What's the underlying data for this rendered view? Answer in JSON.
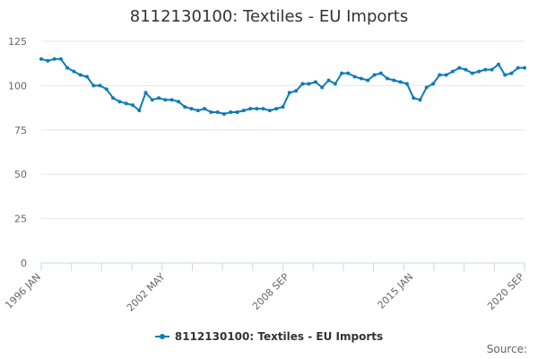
{
  "chart_data": {
    "type": "line",
    "title": "8112130100: Textiles - EU Imports",
    "xlabel": "",
    "ylabel": "",
    "ylim": [
      0,
      125
    ],
    "yticks": [
      0,
      25,
      50,
      75,
      100,
      125
    ],
    "x_start": "1996 JAN",
    "x_end": "2020 SEP",
    "xtick_labels": [
      "1996 JAN",
      "2002 MAY",
      "2008 SEP",
      "2015 JAN",
      "2020 SEP"
    ],
    "grid": true,
    "legend_position": "bottom",
    "series": [
      {
        "name": "8112130100: Textiles - EU Imports",
        "color": "#0d7cb8",
        "x": [
          "1996 JAN",
          "1996 MAY",
          "1996 SEP",
          "1997 JAN",
          "1997 MAY",
          "1997 SEP",
          "1998 JAN",
          "1998 MAY",
          "1998 SEP",
          "1999 JAN",
          "1999 MAY",
          "1999 SEP",
          "2000 JAN",
          "2000 MAY",
          "2000 SEP",
          "2001 JAN",
          "2001 MAY",
          "2001 SEP",
          "2002 JAN",
          "2002 MAY",
          "2002 SEP",
          "2003 JAN",
          "2003 MAY",
          "2003 SEP",
          "2004 JAN",
          "2004 MAY",
          "2004 SEP",
          "2005 JAN",
          "2005 MAY",
          "2005 SEP",
          "2006 JAN",
          "2006 MAY",
          "2006 SEP",
          "2007 JAN",
          "2007 MAY",
          "2007 SEP",
          "2008 JAN",
          "2008 MAY",
          "2008 SEP",
          "2009 JAN",
          "2009 MAY",
          "2009 SEP",
          "2010 JAN",
          "2010 MAY",
          "2010 SEP",
          "2011 JAN",
          "2011 MAY",
          "2011 SEP",
          "2012 JAN",
          "2012 MAY",
          "2012 SEP",
          "2013 JAN",
          "2013 MAY",
          "2013 SEP",
          "2014 JAN",
          "2014 MAY",
          "2014 SEP",
          "2015 JAN",
          "2015 MAY",
          "2015 SEP",
          "2016 JAN",
          "2016 MAY",
          "2016 SEP",
          "2017 JAN",
          "2017 MAY",
          "2017 SEP",
          "2018 JAN",
          "2018 MAY",
          "2018 SEP",
          "2019 JAN",
          "2019 MAY",
          "2019 SEP",
          "2020 JAN",
          "2020 MAY",
          "2020 SEP"
        ],
        "values": [
          115,
          114,
          115,
          115,
          110,
          108,
          106,
          105,
          100,
          100,
          98,
          93,
          91,
          90,
          89,
          86,
          96,
          92,
          93,
          92,
          92,
          91,
          88,
          87,
          86,
          87,
          85,
          85,
          84,
          85,
          85,
          86,
          87,
          87,
          87,
          86,
          87,
          88,
          96,
          97,
          101,
          101,
          102,
          99,
          103,
          101,
          107,
          107,
          105,
          104,
          103,
          106,
          107,
          104,
          103,
          102,
          101,
          93,
          92,
          99,
          101,
          106,
          106,
          108,
          110,
          109,
          107,
          108,
          109,
          109,
          112,
          106,
          107,
          110,
          110
        ]
      }
    ]
  },
  "credits": "Source:"
}
